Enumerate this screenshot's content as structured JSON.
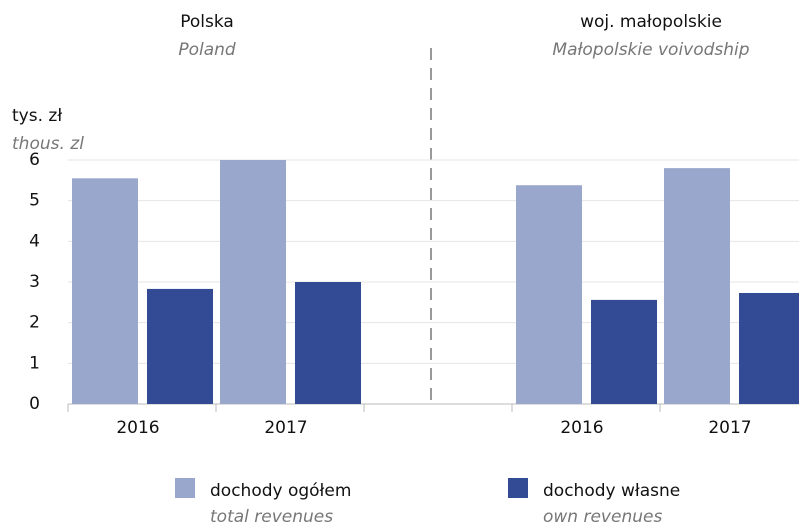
{
  "chart_data": {
    "type": "bar",
    "ylabel": "tys. zł",
    "ylabel_en": "thous. zl",
    "ylim": [
      0,
      6
    ],
    "yticks": [
      0,
      1,
      2,
      3,
      4,
      5,
      6
    ],
    "grid": true,
    "legend": [
      {
        "name": "dochody ogółem",
        "subtitle": "total revenues",
        "color": "#9aa7cc"
      },
      {
        "name": "dochody własne",
        "subtitle": "own revenues",
        "color": "#334a94"
      }
    ],
    "panels": [
      {
        "title": "Polska",
        "subtitle": "Poland",
        "categories": [
          "2016",
          "2017"
        ],
        "series": [
          {
            "values": [
              5.55,
              6.0
            ]
          },
          {
            "values": [
              2.83,
              3.0
            ]
          }
        ]
      },
      {
        "title": "woj. małopolskie",
        "subtitle": "Małopolskie voivodship",
        "categories": [
          "2016",
          "2017"
        ],
        "series": [
          {
            "values": [
              5.38,
              5.8
            ]
          },
          {
            "values": [
              2.56,
              2.73
            ]
          }
        ]
      }
    ]
  }
}
